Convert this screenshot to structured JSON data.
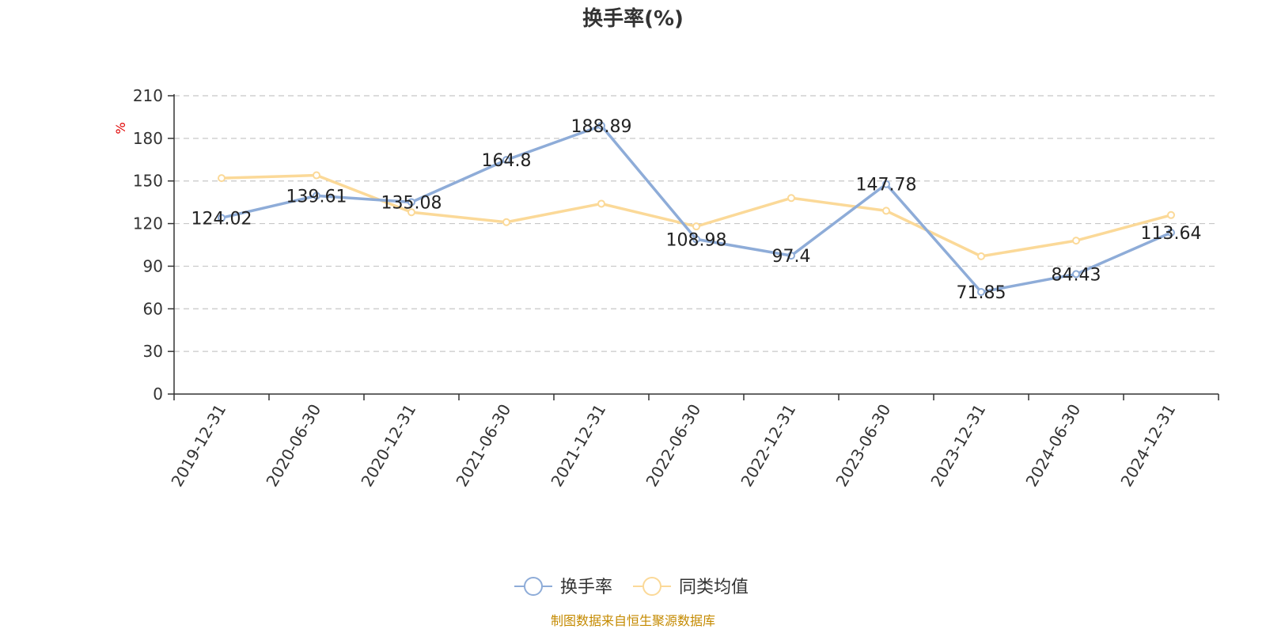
{
  "chart_data": {
    "type": "line",
    "title": "换手率(%)",
    "ylabel": "%",
    "ylim": [
      0,
      210
    ],
    "yticks": [
      0,
      30,
      60,
      90,
      120,
      150,
      180,
      210
    ],
    "grid": true,
    "categories": [
      "2019-12-31",
      "2020-06-30",
      "2020-12-31",
      "2021-06-30",
      "2021-12-31",
      "2022-06-30",
      "2022-12-31",
      "2023-06-30",
      "2023-12-31",
      "2024-06-30",
      "2024-12-31"
    ],
    "series": [
      {
        "name": "换手率",
        "color": "#8eacd8",
        "values": [
          124.02,
          139.61,
          135.08,
          164.8,
          188.89,
          108.98,
          97.4,
          147.78,
          71.85,
          84.43,
          113.64
        ],
        "labels": [
          "124.02",
          "139.61",
          "135.08",
          "164.8",
          "188.89",
          "108.98",
          "97.4",
          "147.78",
          "71.85",
          "84.43",
          "113.64"
        ]
      },
      {
        "name": "同类均值",
        "color": "#fbd998",
        "values": [
          152,
          154,
          128,
          121,
          134,
          118,
          138,
          129,
          97,
          108,
          126
        ]
      }
    ],
    "legend": "bottom-center",
    "source": "制图数据来自恒生聚源数据库"
  }
}
